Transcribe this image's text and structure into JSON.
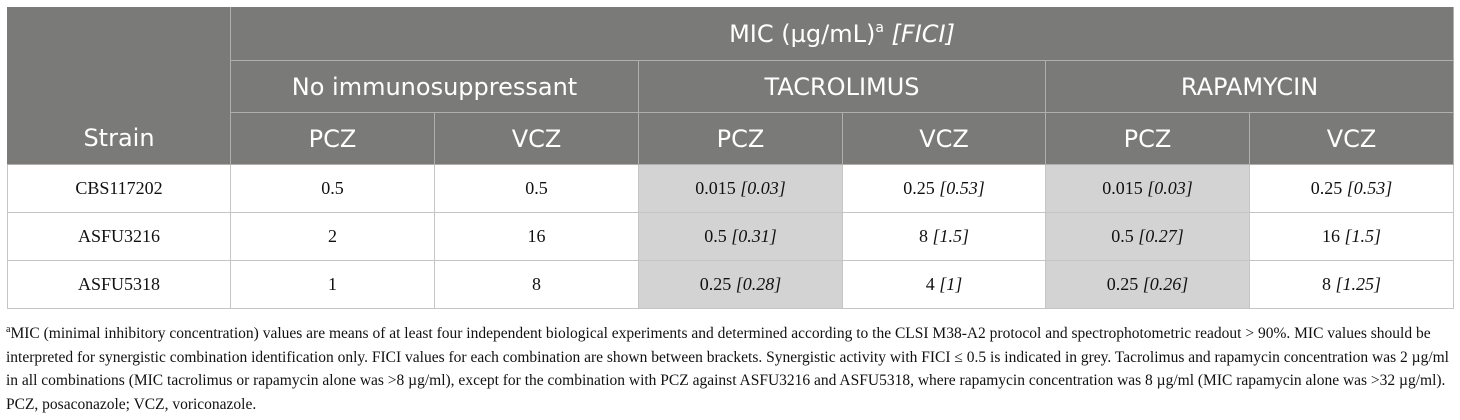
{
  "table": {
    "super_header": {
      "label": "MIC (µg/mL)",
      "superscript": "a",
      "fici": "[FICI]"
    },
    "group_headers": [
      "No immunosuppressant",
      "TACROLIMUS",
      "RAPAMYCIN"
    ],
    "strain_header": "Strain",
    "drug_headers": [
      "PCZ",
      "VCZ",
      "PCZ",
      "VCZ",
      "PCZ",
      "VCZ"
    ],
    "rows": [
      {
        "strain": "CBS117202",
        "cells": [
          {
            "mic": "0.5",
            "fici": ""
          },
          {
            "mic": "0.5",
            "fici": ""
          },
          {
            "mic": "0.015",
            "fici": "[0.03]"
          },
          {
            "mic": "0.25",
            "fici": "[0.53]"
          },
          {
            "mic": "0.015",
            "fici": "[0.03]"
          },
          {
            "mic": "0.25",
            "fici": "[0.53]"
          }
        ]
      },
      {
        "strain": "ASFU3216",
        "cells": [
          {
            "mic": "2",
            "fici": ""
          },
          {
            "mic": "16",
            "fici": ""
          },
          {
            "mic": "0.5",
            "fici": "[0.31]"
          },
          {
            "mic": "8",
            "fici": "[1.5]"
          },
          {
            "mic": "0.5",
            "fici": "[0.27]"
          },
          {
            "mic": "16",
            "fici": "[1.5]"
          }
        ]
      },
      {
        "strain": "ASFU5318",
        "cells": [
          {
            "mic": "1",
            "fici": ""
          },
          {
            "mic": "8",
            "fici": ""
          },
          {
            "mic": "0.25",
            "fici": "[0.28]"
          },
          {
            "mic": "4",
            "fici": "[1]"
          },
          {
            "mic": "0.25",
            "fici": "[0.26]"
          },
          {
            "mic": "8",
            "fici": "[1.25]"
          }
        ]
      }
    ],
    "synergy_color": "#d3d3d3",
    "header_color": "#7a7b79"
  },
  "footnote": {
    "marker": "a",
    "text": "MIC (minimal inhibitory concentration) values are means of at least four independent biological experiments and determined according to the CLSI M38-A2 protocol and spectrophotometric readout > 90%. MIC values should be interpreted for synergistic combination identification only. FICI values for each combination are shown between brackets. Synergistic activity with FICI ≤ 0.5 is indicated in grey. Tacrolimus and rapamycin concentration was 2 µg/ml in all combinations (MIC tacrolimus or rapamycin alone was >8 µg/ml), except for the combination with PCZ against ASFU3216 and ASFU5318, where rapamycin concentration was 8 µg/ml (MIC rapamycin alone was >32 µg/ml). PCZ, posaconazole; VCZ, voriconazole."
  }
}
